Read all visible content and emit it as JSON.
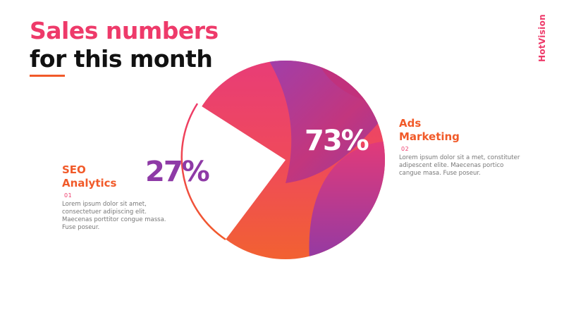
{
  "title": {
    "line1": "Sales numbers",
    "line2": "for this month",
    "line1_color": "#ee3a6a",
    "line2_color": "#111111"
  },
  "brand": {
    "text": "HotVision",
    "color": "#ee3a6a"
  },
  "chart_data": {
    "type": "pie",
    "title": "Sales numbers for this month",
    "series": [
      {
        "name": "SEO Analytics",
        "value": 27,
        "label": "27%",
        "number": "01",
        "color": "#ffffff",
        "description": "Lorem ipsum dolor sit amet, consectetuer adipiscing elit. Maecenas porttitor congue massa. Fuse poseur."
      },
      {
        "name": "Ads Marketing",
        "value": 73,
        "label": "73%",
        "number": "02",
        "color": "#ef3f6b",
        "description": "Lorem ipsum dolor sit a met, constituter adipescent elite. Maecenas portico cangue masa. Fuse poseur."
      }
    ],
    "colors": {
      "pink": "#ee3a6a",
      "orange": "#f15a29",
      "purple": "#8e3aa6",
      "magenta": "#d63384"
    }
  },
  "labels": {
    "seo": {
      "title_line1": "SEO",
      "title_line2": "Analytics"
    },
    "ads": {
      "title_line1": "Ads",
      "title_line2": "Marketing"
    }
  }
}
